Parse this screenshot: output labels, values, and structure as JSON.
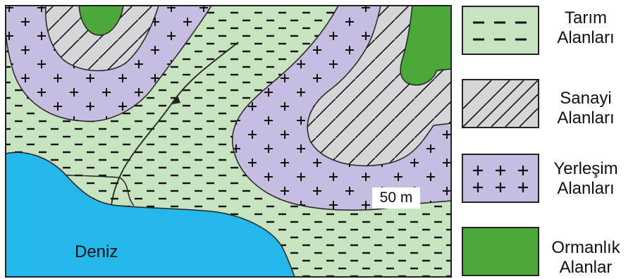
{
  "map": {
    "sea_label": "Deniz",
    "contour_label": "50 m"
  },
  "legend": {
    "items": [
      {
        "line1": "Tarım",
        "line2": "Alanları",
        "color": "#c8e3c0",
        "pattern": "dashes"
      },
      {
        "line1": "Sanayi",
        "line2": "Alanları",
        "color": "#d6d6d8",
        "pattern": "diagonal-lines"
      },
      {
        "line1": "Yerleşim",
        "line2": "Alanları",
        "color": "#c6bde0",
        "pattern": "plus-signs"
      },
      {
        "line1": "Ormanlık",
        "line2": "Alanlar",
        "color": "#4da83a",
        "pattern": "solid"
      }
    ]
  },
  "colors": {
    "agriculture": "#c8e3c0",
    "industry": "#d6d6d8",
    "residential": "#c6bde0",
    "forest": "#4da83a",
    "sea": "#22b8ec",
    "outline": "#222222"
  }
}
